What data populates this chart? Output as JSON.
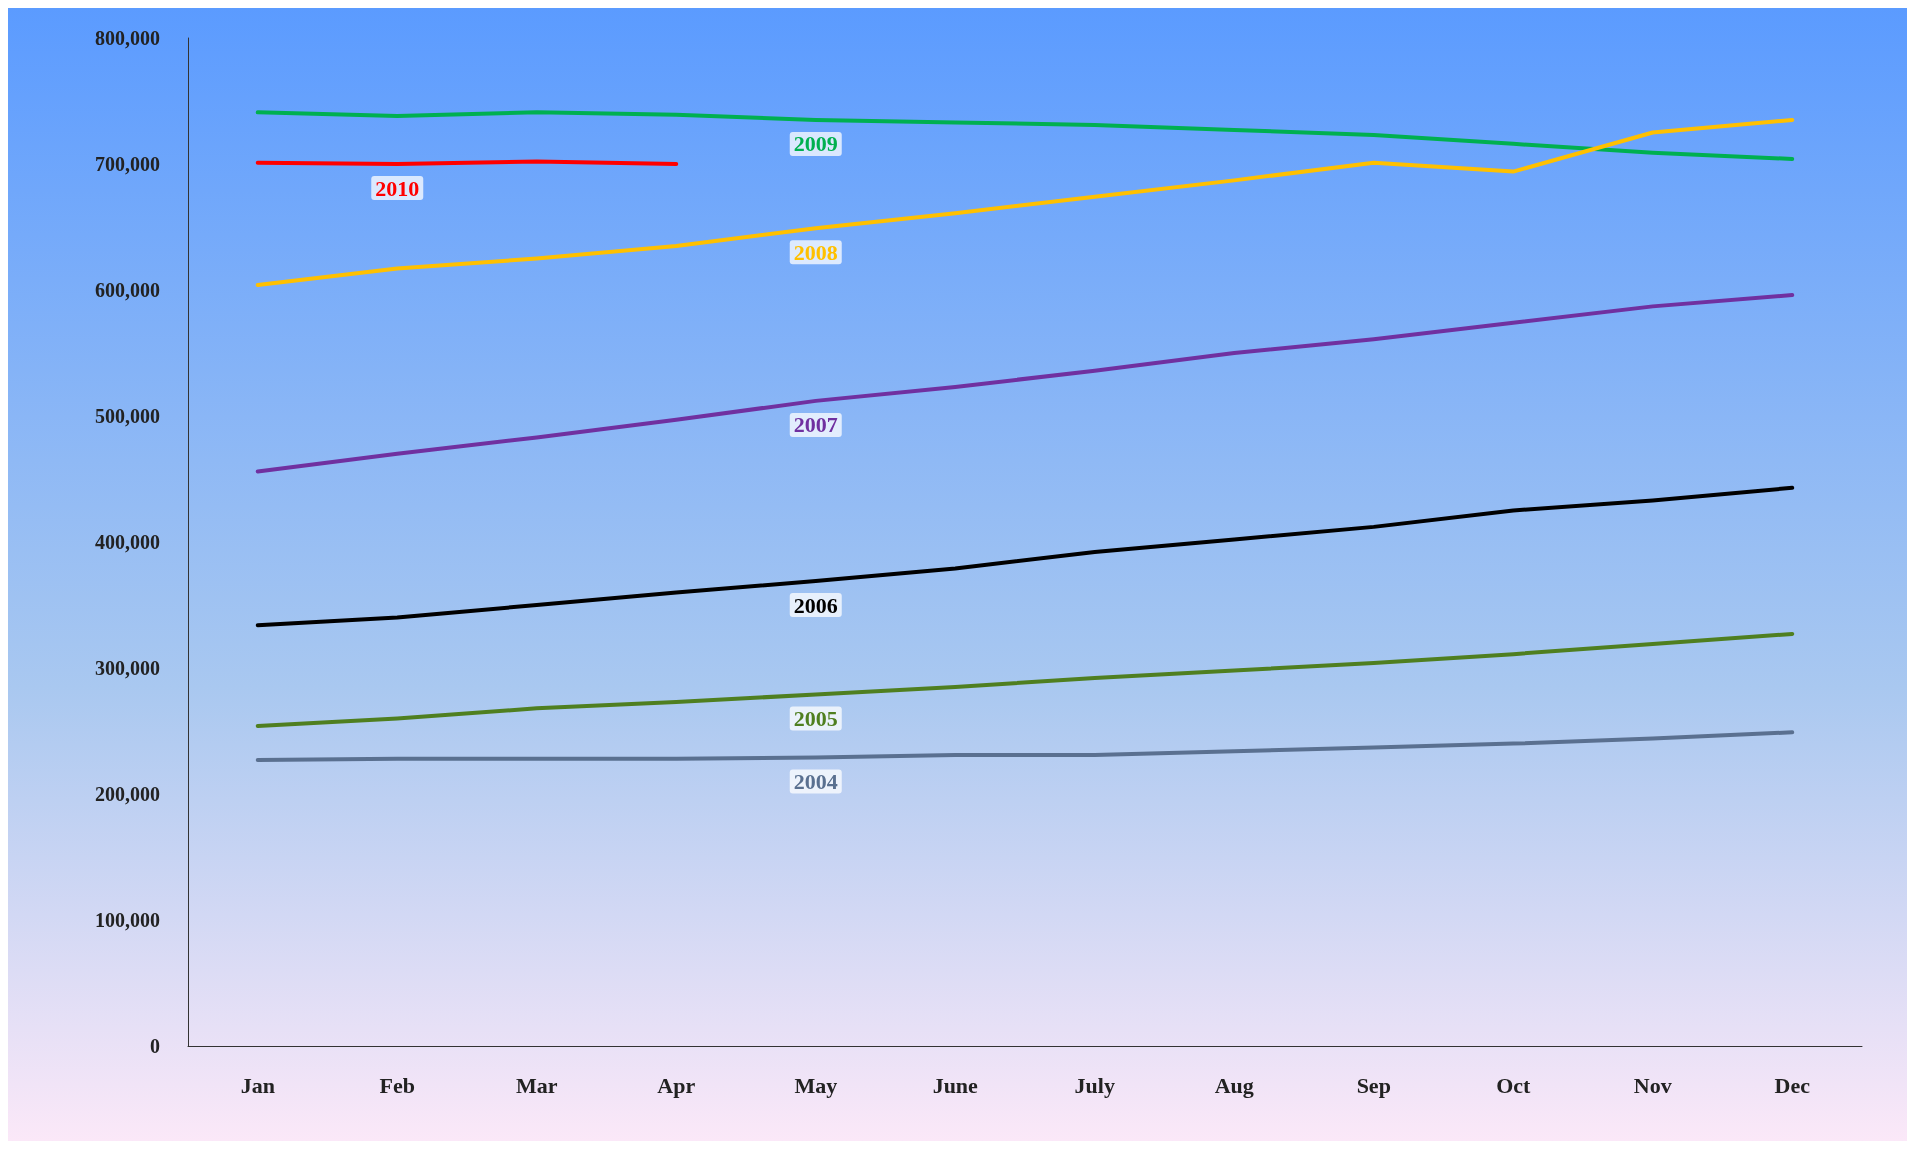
{
  "chart_data": {
    "type": "line",
    "categories": [
      "Jan",
      "Feb",
      "Mar",
      "Apr",
      "May",
      "June",
      "July",
      "Aug",
      "Sep",
      "Oct",
      "Nov",
      "Dec"
    ],
    "series": [
      {
        "name": "2009",
        "color": "#00b050",
        "values": [
          741000,
          738000,
          741000,
          739000,
          735000,
          733000,
          731000,
          727000,
          723000,
          716000,
          709000,
          704000
        ]
      },
      {
        "name": "2010",
        "color": "#ff0000",
        "values": [
          701000,
          700000,
          702000,
          700000,
          null,
          null,
          null,
          null,
          null,
          null,
          null,
          null
        ]
      },
      {
        "name": "2008",
        "color": "#ffc000",
        "values": [
          604000,
          617000,
          625000,
          635000,
          649000,
          661000,
          674000,
          687000,
          701000,
          694000,
          725000,
          735000
        ]
      },
      {
        "name": "2007",
        "color": "#7030a0",
        "values": [
          456000,
          470000,
          483000,
          497000,
          512000,
          523000,
          536000,
          550000,
          561000,
          574000,
          587000,
          596000
        ]
      },
      {
        "name": "2006",
        "color": "#000000",
        "values": [
          334000,
          340000,
          350000,
          360000,
          369000,
          379000,
          392000,
          402000,
          412000,
          425000,
          433000,
          443000
        ]
      },
      {
        "name": "2005",
        "color": "#4f7f20",
        "values": [
          254000,
          260000,
          268000,
          273000,
          279000,
          285000,
          292000,
          298000,
          304000,
          311000,
          319000,
          327000
        ]
      },
      {
        "name": "2004",
        "color": "#5a7090",
        "values": [
          227000,
          228000,
          228000,
          228000,
          229000,
          231000,
          231000,
          234000,
          237000,
          240000,
          244000,
          249000
        ]
      }
    ],
    "ylim": [
      0,
      800000
    ],
    "yticks": [
      {
        "value": 0,
        "label": "0"
      },
      {
        "value": 100000,
        "label": "100,000"
      },
      {
        "value": 200000,
        "label": "200,000"
      },
      {
        "value": 300000,
        "label": "300,000"
      },
      {
        "value": 400000,
        "label": "400,000"
      },
      {
        "value": 500000,
        "label": "500,000"
      },
      {
        "value": 600000,
        "label": "600,000"
      },
      {
        "value": 700000,
        "label": "700,000"
      },
      {
        "value": 800000,
        "label": "800,000"
      }
    ],
    "grid": false,
    "legend": false,
    "marker": "none",
    "line_style": "solid"
  }
}
